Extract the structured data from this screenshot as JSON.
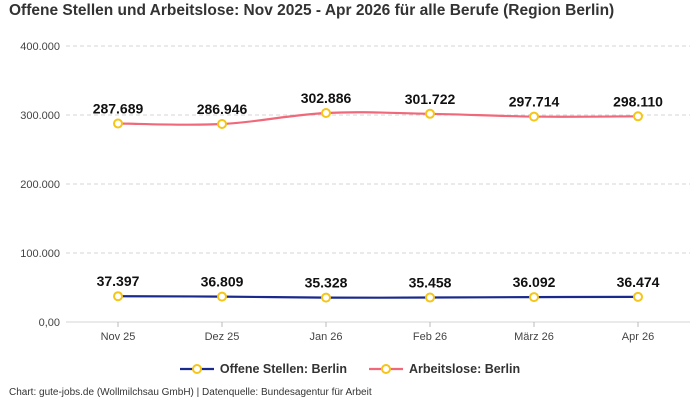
{
  "title": "Offene Stellen und Arbeitslose: Nov 2025 - Apr 2026 für alle Berufe (Region Berlin)",
  "source": "Chart: gute-jobs.de (Wollmilchsau GmbH) | Datenquelle: Bundesagentur für Arbeit",
  "chart_data": {
    "type": "line",
    "title": "Offene Stellen und Arbeitslose: Nov 2025 - Apr 2026 für alle Berufe (Region Berlin)",
    "categories": [
      "Nov 25",
      "Dez 25",
      "Jan 26",
      "Feb 26",
      "März 26",
      "Apr 26"
    ],
    "series": [
      {
        "name": "Offene Stellen: Berlin",
        "values": [
          37397,
          36809,
          35328,
          35458,
          36092,
          36474
        ],
        "labels": [
          "37.397",
          "36.809",
          "35.328",
          "35.458",
          "36.092",
          "36.474"
        ],
        "color": "#1a2a8c"
      },
      {
        "name": "Arbeitslose: Berlin",
        "values": [
          287689,
          286946,
          302886,
          301722,
          297714,
          298110
        ],
        "labels": [
          "287.689",
          "286.946",
          "302.886",
          "301.722",
          "297.714",
          "298.110"
        ],
        "color": "#f0697a"
      }
    ],
    "yticks": [
      0,
      100000,
      200000,
      300000,
      400000
    ],
    "ytick_labels": [
      "0,00",
      "100.000",
      "200.000",
      "300.000",
      "400.000"
    ],
    "ylim": [
      0,
      400000
    ],
    "grid": true,
    "marker_color": "#f5c518",
    "legend_position": "bottom"
  }
}
